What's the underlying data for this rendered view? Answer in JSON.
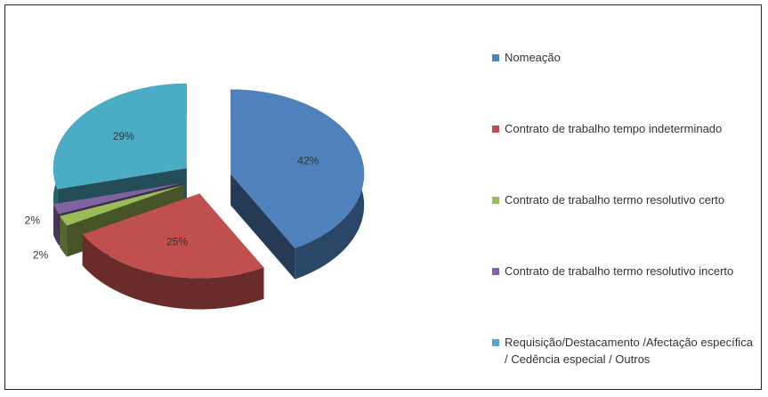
{
  "chart_data": {
    "type": "pie",
    "categories": [
      "Nomeação",
      "Contrato de trabalho tempo indeterminado",
      "Contrato de trabalho termo resolutivo certo",
      "Contrato de trabalho termo resolutivo incerto",
      "Requisição/Destacamento /Afectação específica / Cedência especial / Outros"
    ],
    "values": [
      42,
      25,
      2,
      2,
      29
    ],
    "value_labels": [
      "42%",
      "25%",
      "2%",
      "2%",
      "29%"
    ],
    "colors": [
      "#4f81bd",
      "#c0504d",
      "#9bbb59",
      "#8064a2",
      "#4bacc6"
    ],
    "legend": "right"
  }
}
